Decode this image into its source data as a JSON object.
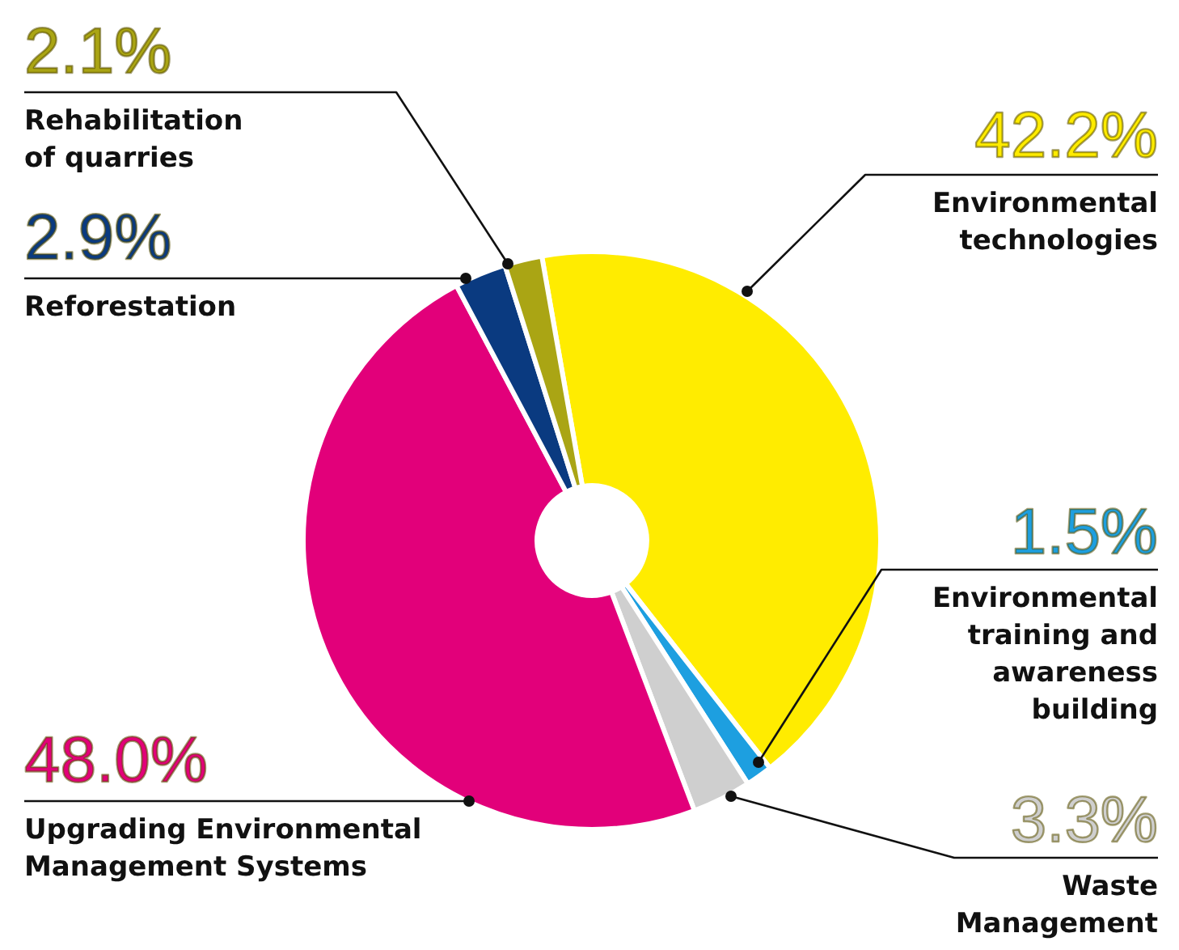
{
  "chart_data": {
    "type": "donut",
    "categories": [
      "Environmental technologies",
      "Environmental training and awareness building",
      "Waste Management",
      "Upgrading Environmental Management Systems",
      "Reforestation",
      "Rehabilitation of quarries"
    ],
    "values": [
      42.2,
      1.5,
      3.3,
      48.0,
      2.9,
      2.1
    ],
    "colors": [
      "#ffec00",
      "#1d9fe0",
      "#cfcfcf",
      "#e2007a",
      "#0a3a80",
      "#aaa514"
    ],
    "value_labels": [
      "42.2%",
      "1.5%",
      "3.3%",
      "48.0%",
      "2.9%",
      "2.1%"
    ],
    "legend": false
  }
}
